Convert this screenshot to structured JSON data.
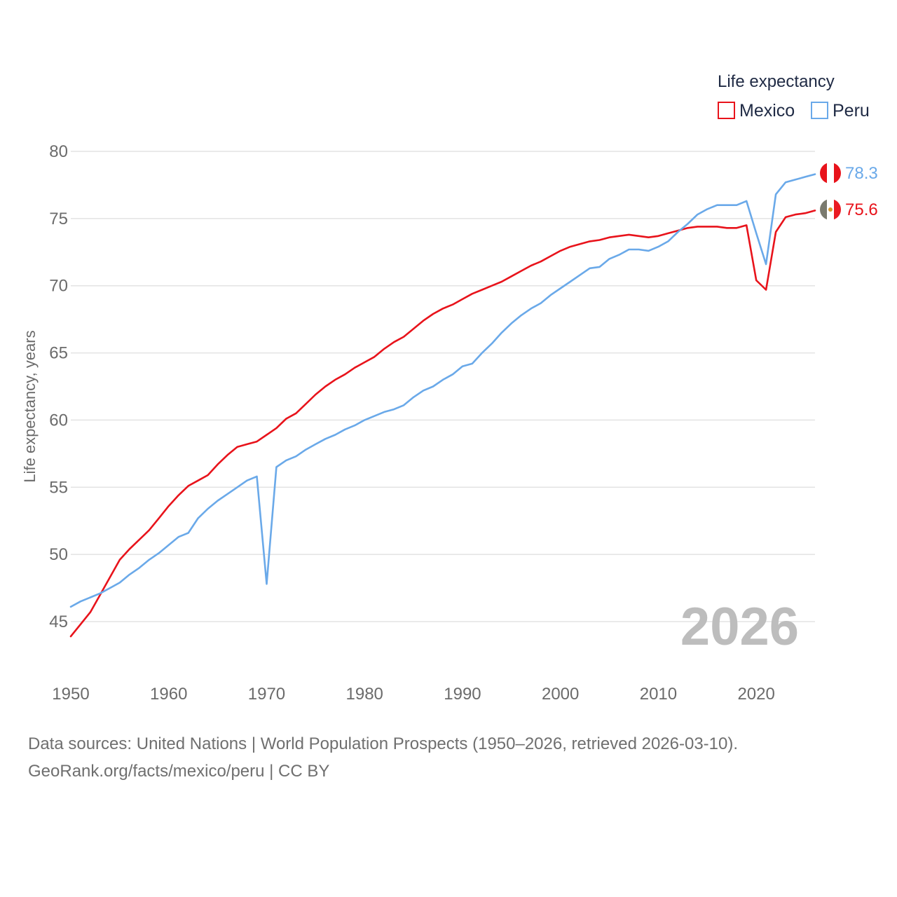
{
  "chart_data": {
    "type": "line",
    "legend_title": "Life expectancy",
    "ylabel": "Life expectancy, years",
    "xlabel": "",
    "xlim": [
      1950,
      2026
    ],
    "ylim": [
      43,
      80.5
    ],
    "x_ticks": [
      1950,
      1960,
      1970,
      1980,
      1990,
      2000,
      2010,
      2020
    ],
    "y_ticks": [
      45,
      50,
      55,
      60,
      65,
      70,
      75,
      80
    ],
    "year_label": "2026",
    "x": [
      1950,
      1951,
      1952,
      1953,
      1954,
      1955,
      1956,
      1957,
      1958,
      1959,
      1960,
      1961,
      1962,
      1963,
      1964,
      1965,
      1966,
      1967,
      1968,
      1969,
      1970,
      1971,
      1972,
      1973,
      1974,
      1975,
      1976,
      1977,
      1978,
      1979,
      1980,
      1981,
      1982,
      1983,
      1984,
      1985,
      1986,
      1987,
      1988,
      1989,
      1990,
      1991,
      1992,
      1993,
      1994,
      1995,
      1996,
      1997,
      1998,
      1999,
      2000,
      2001,
      2002,
      2003,
      2004,
      2005,
      2006,
      2007,
      2008,
      2009,
      2010,
      2011,
      2012,
      2013,
      2014,
      2015,
      2016,
      2017,
      2018,
      2019,
      2020,
      2021,
      2022,
      2023,
      2024,
      2025,
      2026
    ],
    "series": [
      {
        "name": "Mexico",
        "color": "#e8131b",
        "end_value": "75.6",
        "flag": "mexico-flag",
        "values": [
          43.9,
          44.8,
          45.7,
          47.0,
          48.3,
          49.6,
          50.4,
          51.1,
          51.8,
          52.7,
          53.6,
          54.4,
          55.1,
          55.5,
          55.9,
          56.7,
          57.4,
          58.0,
          58.2,
          58.4,
          58.9,
          59.4,
          60.1,
          60.5,
          61.2,
          61.9,
          62.5,
          63.0,
          63.4,
          63.9,
          64.3,
          64.7,
          65.3,
          65.8,
          66.2,
          66.8,
          67.4,
          67.9,
          68.3,
          68.6,
          69.0,
          69.4,
          69.7,
          70.0,
          70.3,
          70.7,
          71.1,
          71.5,
          71.8,
          72.2,
          72.6,
          72.9,
          73.1,
          73.3,
          73.4,
          73.6,
          73.7,
          73.8,
          73.7,
          73.6,
          73.7,
          73.9,
          74.1,
          74.3,
          74.4,
          74.4,
          74.4,
          74.3,
          74.3,
          74.5,
          70.4,
          69.7,
          74.0,
          75.1,
          75.3,
          75.4,
          75.6
        ]
      },
      {
        "name": "Peru",
        "color": "#6aa9e9",
        "end_value": "78.3",
        "flag": "peru-flag",
        "values": [
          46.1,
          46.5,
          46.8,
          47.1,
          47.5,
          47.9,
          48.5,
          49.0,
          49.6,
          50.1,
          50.7,
          51.3,
          51.6,
          52.7,
          53.4,
          54.0,
          54.5,
          55.0,
          55.5,
          55.8,
          47.8,
          56.5,
          57.0,
          57.3,
          57.8,
          58.2,
          58.6,
          58.9,
          59.3,
          59.6,
          60.0,
          60.3,
          60.6,
          60.8,
          61.1,
          61.7,
          62.2,
          62.5,
          63.0,
          63.4,
          64.0,
          64.2,
          65.0,
          65.7,
          66.5,
          67.2,
          67.8,
          68.3,
          68.7,
          69.3,
          69.8,
          70.3,
          70.8,
          71.3,
          71.4,
          72.0,
          72.3,
          72.7,
          72.7,
          72.6,
          72.9,
          73.3,
          74.0,
          74.6,
          75.3,
          75.7,
          76.0,
          76.0,
          76.0,
          76.3,
          73.9,
          71.6,
          76.8,
          77.7,
          77.9,
          78.1,
          78.3
        ]
      }
    ]
  },
  "footer": {
    "line1": "Data sources: United Nations | World Population Prospects (1950–2026, retrieved 2026-03-10).",
    "line2": "GeoRank.org/facts/mexico/peru | CC BY"
  }
}
